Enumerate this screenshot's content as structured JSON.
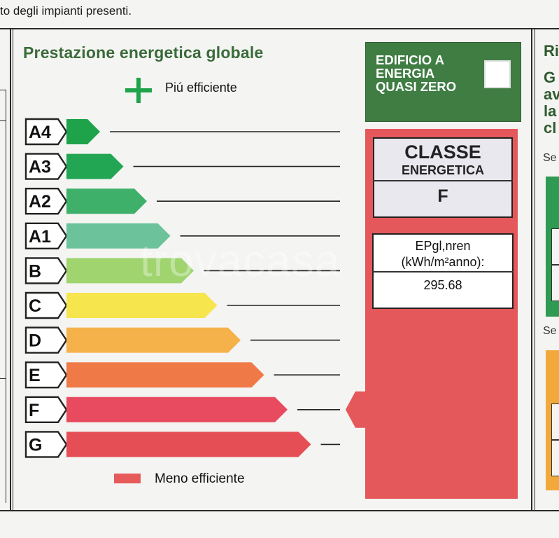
{
  "header_text": "to degli impianti presenti.",
  "panel": {
    "title": "Prestazione energetica globale",
    "top_label": "Piú efficiente",
    "bottom_label": "Meno efficiente"
  },
  "classes": [
    {
      "label": "A4",
      "color": "#1ea34a"
    },
    {
      "label": "A3",
      "color": "#22a653"
    },
    {
      "label": "A2",
      "color": "#3eb06a"
    },
    {
      "label": "A1",
      "color": "#6cc39b"
    },
    {
      "label": "B",
      "color": "#9fd46e"
    },
    {
      "label": "C",
      "color": "#f7e54d"
    },
    {
      "label": "D",
      "color": "#f6b24a"
    },
    {
      "label": "E",
      "color": "#ef7a48"
    },
    {
      "label": "F",
      "color": "#e84b5f"
    },
    {
      "label": "G",
      "color": "#e54e55"
    }
  ],
  "current_class": "F",
  "nzeb": {
    "label": "EDIFICIO A ENERGIA QUASI ZERO",
    "checked": false
  },
  "classe_energetica": {
    "line1": "CLASSE",
    "line2": "ENERGETICA",
    "value": "F"
  },
  "ep": {
    "line1": "EPgl,nren",
    "line2": "(kWh/m²anno):",
    "value": "295.68"
  },
  "watermark": "trovacasa",
  "right_partial": {
    "heading": "Ri",
    "lines": [
      "G",
      "av",
      "la",
      "cl"
    ],
    "se1": "Se",
    "se2": "Se"
  },
  "colors": {
    "accent_green": "#3f7d43",
    "panel_red": "#e4575a"
  }
}
